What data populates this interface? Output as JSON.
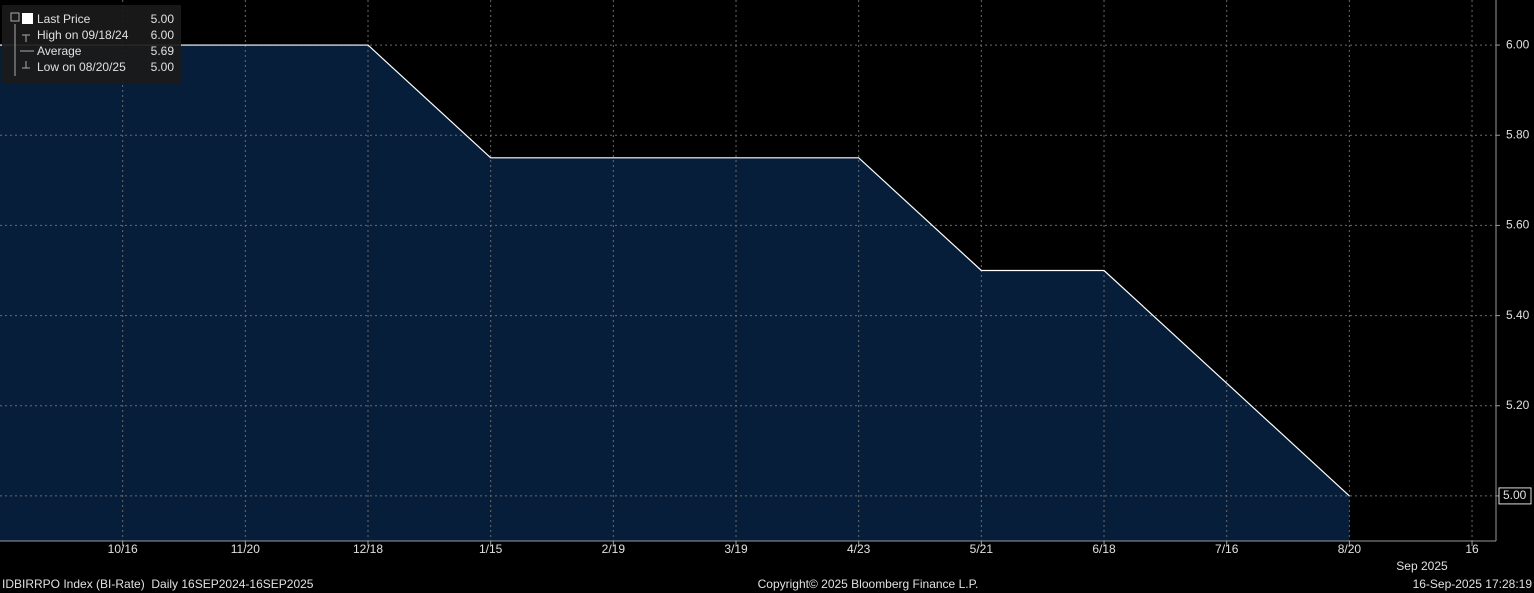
{
  "chart_data": {
    "type": "area",
    "categories": [
      null,
      "10/16",
      "11/20",
      "12/18",
      "1/15",
      "2/19",
      "3/19",
      "4/23",
      "5/21",
      "6/18",
      "7/16",
      "8/20",
      "16"
    ],
    "x_secondary_label": "Sep 2025",
    "series": [
      {
        "name": "Last Price",
        "color": "#ffffff",
        "fill": "#061e3a",
        "values": [
          6.0,
          6.0,
          6.0,
          6.0,
          5.75,
          5.75,
          5.75,
          5.75,
          5.5,
          5.5,
          5.25,
          5.0,
          null
        ]
      }
    ],
    "ylim": [
      4.9,
      6.1
    ],
    "yticks": [
      {
        "value": 5,
        "label": "5.00"
      },
      {
        "value": 5.2,
        "label": "5.20"
      },
      {
        "value": 5.4,
        "label": "5.40"
      },
      {
        "value": 5.6,
        "label": "5.60"
      },
      {
        "value": 5.8,
        "label": "5.80"
      },
      {
        "value": 6,
        "label": "6.00"
      }
    ],
    "grid": true,
    "last_value_box": true,
    "legend": [
      {
        "label": "Last Price",
        "value": "5.00"
      },
      {
        "label": "High on 09/18/24",
        "value": "6.00"
      },
      {
        "label": "Average",
        "value": "5.69"
      },
      {
        "label": "Low on 08/20/25",
        "value": "5.00"
      }
    ],
    "footer": {
      "left": "IDBIRRPO Index (BI-Rate)  Daily 16SEP2024-16SEP2025",
      "center": "Copyright© 2025 Bloomberg Finance L.P.",
      "right": "16-Sep-2025 17:28:19"
    }
  }
}
